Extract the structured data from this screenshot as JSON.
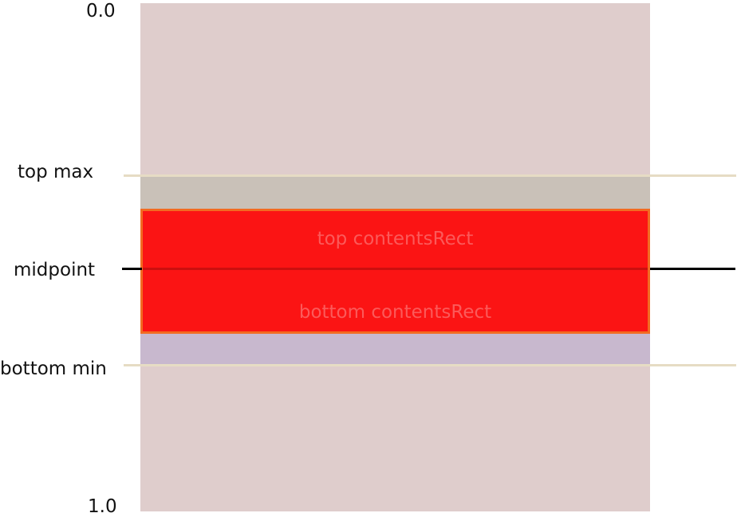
{
  "labels": {
    "zero": "0.0",
    "top_max": "top max",
    "midpoint": "midpoint",
    "bottom_min": "bottom min",
    "one": "1.0"
  },
  "contents_rect": {
    "top_label": "top contentsRect",
    "bottom_label": "bottom contentsRect"
  },
  "colors": {
    "column": "#dfcdcc",
    "contents_rect_fill": "#fb1414",
    "contents_rect_border": "#f26b21",
    "guide_line": "#e6dcc4",
    "midpoint_line": "#000000"
  }
}
